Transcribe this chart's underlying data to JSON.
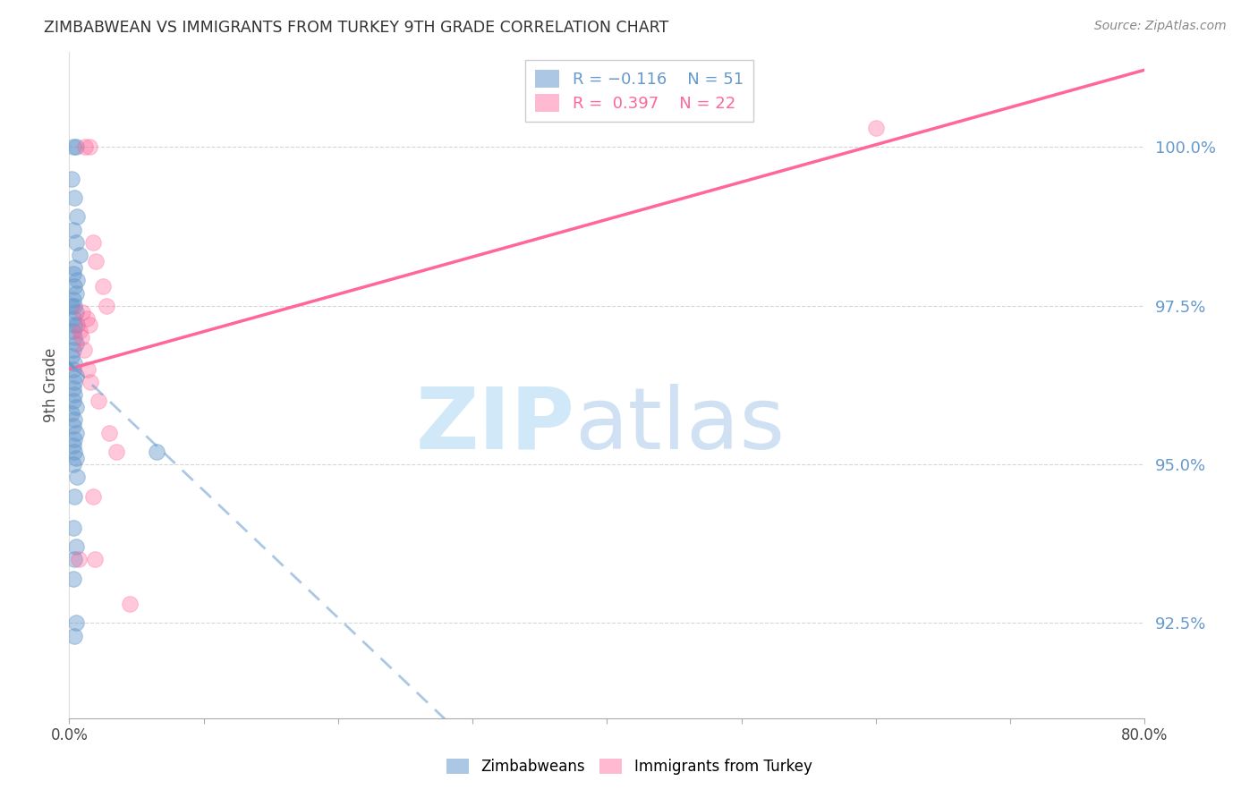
{
  "title": "ZIMBABWEAN VS IMMIGRANTS FROM TURKEY 9TH GRADE CORRELATION CHART",
  "source": "Source: ZipAtlas.com",
  "ylabel": "9th Grade",
  "y_tick_values": [
    92.5,
    95.0,
    97.5,
    100.0
  ],
  "x_tick_values": [
    0.0,
    10.0,
    20.0,
    30.0,
    40.0,
    50.0,
    60.0,
    70.0,
    80.0
  ],
  "xlim": [
    0.0,
    80.0
  ],
  "ylim": [
    91.0,
    101.5
  ],
  "blue_color": "#6699CC",
  "pink_color": "#FF6699",
  "blue_scatter_x": [
    0.3,
    0.5,
    0.2,
    0.4,
    0.6,
    0.3,
    0.5,
    0.8,
    0.4,
    0.3,
    0.6,
    0.4,
    0.5,
    0.3,
    0.4,
    0.2,
    0.5,
    0.3,
    0.4,
    0.6,
    0.3,
    0.4,
    0.5,
    0.3,
    0.2,
    0.4,
    0.3,
    0.5,
    0.4,
    0.3,
    0.4,
    0.3,
    0.5,
    0.2,
    0.4,
    0.3,
    0.5,
    0.4,
    0.3,
    0.4,
    0.5,
    0.3,
    0.6,
    0.4,
    6.5,
    0.3,
    0.5,
    0.4,
    0.3,
    0.5,
    0.4
  ],
  "blue_scatter_y": [
    100.0,
    100.0,
    99.5,
    99.2,
    98.9,
    98.7,
    98.5,
    98.3,
    98.1,
    98.0,
    97.9,
    97.8,
    97.7,
    97.6,
    97.5,
    97.5,
    97.4,
    97.3,
    97.2,
    97.2,
    97.1,
    97.0,
    96.9,
    96.8,
    96.7,
    96.6,
    96.5,
    96.4,
    96.3,
    96.2,
    96.1,
    96.0,
    95.9,
    95.8,
    95.7,
    95.6,
    95.5,
    95.4,
    95.3,
    95.2,
    95.1,
    95.0,
    94.8,
    94.5,
    95.2,
    94.0,
    93.7,
    93.5,
    93.2,
    92.5,
    92.3
  ],
  "pink_scatter_x": [
    1.2,
    1.5,
    1.8,
    2.0,
    2.5,
    2.8,
    1.0,
    1.3,
    1.5,
    0.8,
    0.9,
    1.1,
    1.4,
    1.6,
    2.2,
    3.0,
    3.5,
    1.8,
    0.7,
    1.9,
    60.0,
    4.5
  ],
  "pink_scatter_y": [
    100.0,
    100.0,
    98.5,
    98.2,
    97.8,
    97.5,
    97.4,
    97.3,
    97.2,
    97.1,
    97.0,
    96.8,
    96.5,
    96.3,
    96.0,
    95.5,
    95.2,
    94.5,
    93.5,
    93.5,
    100.3,
    92.8
  ],
  "background_color": "#ffffff",
  "grid_color": "#cccccc",
  "watermark_zip_color": "#d0e8f8",
  "watermark_atlas_color": "#c0d8f0"
}
